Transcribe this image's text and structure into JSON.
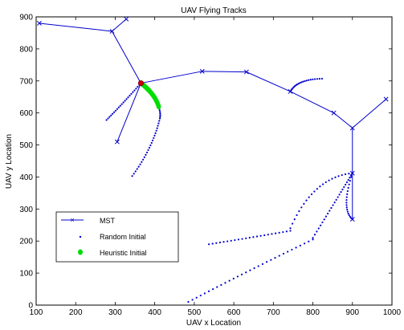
{
  "chart_data": {
    "type": "line",
    "title": "UAV Flying Tracks",
    "xlabel": "UAV x Location",
    "ylabel": "UAV y Location",
    "xlim": [
      100,
      1000
    ],
    "ylim": [
      0,
      900
    ],
    "xticks": [
      100,
      200,
      300,
      400,
      500,
      600,
      700,
      800,
      900,
      1000
    ],
    "yticks": [
      0,
      100,
      200,
      300,
      400,
      500,
      600,
      700,
      800,
      900
    ],
    "legend_position": "lower-left",
    "colors": {
      "mst": "#0000cc",
      "random": "#0000cc",
      "heuristic": "#00dd00",
      "root": "#cc0000"
    },
    "series": [
      {
        "name": "MST",
        "style": "line-x-markers",
        "edges": [
          [
            [
              365,
              693
            ],
            [
              292,
              855
            ]
          ],
          [
            [
              292,
              855
            ],
            [
              108,
              880
            ]
          ],
          [
            [
              292,
              855
            ],
            [
              328,
              893
            ]
          ],
          [
            [
              365,
              693
            ],
            [
              305,
              510
            ]
          ],
          [
            [
              365,
              693
            ],
            [
              520,
              730
            ]
          ],
          [
            [
              520,
              730
            ],
            [
              632,
              728
            ]
          ],
          [
            [
              632,
              728
            ],
            [
              743,
              667
            ]
          ],
          [
            [
              743,
              667
            ],
            [
              853,
              600
            ]
          ],
          [
            [
              853,
              600
            ],
            [
              900,
              553
            ]
          ],
          [
            [
              900,
              553
            ],
            [
              985,
              643
            ]
          ],
          [
            [
              900,
              553
            ],
            [
              900,
              412
            ]
          ],
          [
            [
              900,
              412
            ],
            [
              900,
              268
            ]
          ]
        ]
      },
      {
        "name": "Random Initial",
        "style": "dots",
        "paths": [
          {
            "from": [
              365,
              693
            ],
            "control": [
              320,
              630
            ],
            "to": [
              278,
              578
            ],
            "n": 22
          },
          {
            "from": [
              365,
              693
            ],
            "control": [
              420,
              630
            ],
            "to": [
              413,
              583
            ],
            "n": 20
          },
          {
            "from": [
              413,
              583
            ],
            "control": [
              395,
              490
            ],
            "to": [
              343,
              403
            ],
            "n": 24
          },
          {
            "from": [
              743,
              667
            ],
            "control": [
              760,
              705
            ],
            "to": [
              823,
              707
            ],
            "n": 20
          },
          {
            "from": [
              900,
              412
            ],
            "control": [
              800,
              400
            ],
            "to": [
              743,
              240
            ],
            "n": 22
          },
          {
            "from": [
              900,
              412
            ],
            "control": [
              860,
              330
            ],
            "to": [
              800,
              210
            ],
            "n": 24
          },
          {
            "from": [
              900,
              412
            ],
            "control": [
              870,
              300
            ],
            "to": [
              900,
              268
            ],
            "n": 18
          },
          {
            "from": [
              743,
              232
            ],
            "control": [
              640,
              210
            ],
            "to": [
              537,
              190
            ],
            "n": 22
          },
          {
            "from": [
              800,
              205
            ],
            "control": [
              640,
              110
            ],
            "to": [
              485,
              10
            ],
            "n": 30
          }
        ]
      },
      {
        "name": "Heuristic Initial",
        "style": "filled-dots",
        "paths": [
          {
            "from": [
              365,
              693
            ],
            "control": [
              400,
              660
            ],
            "to": [
              410,
              620
            ],
            "n": 14
          }
        ]
      }
    ],
    "root_node": [
      365,
      693
    ]
  }
}
